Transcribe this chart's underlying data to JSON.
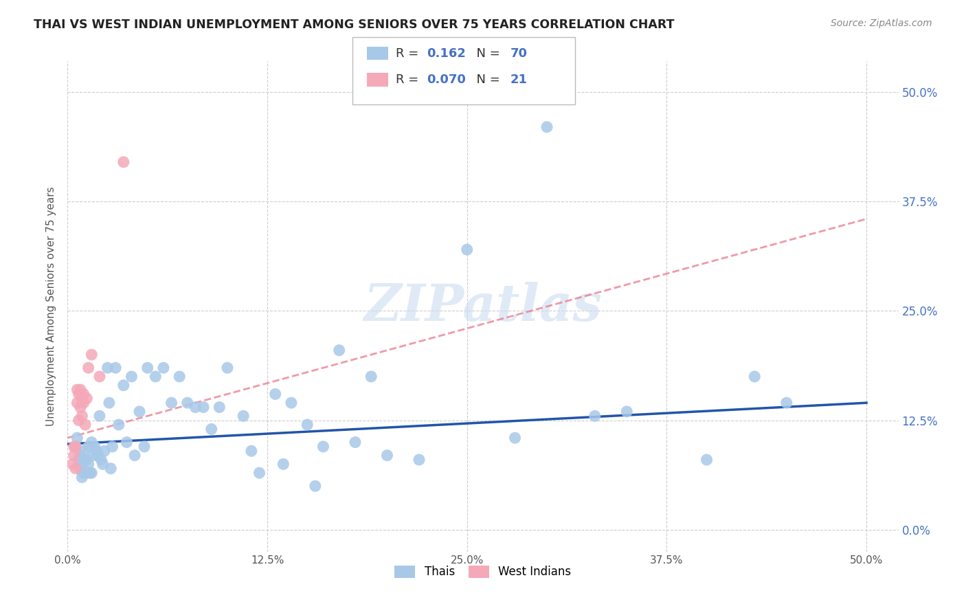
{
  "title": "THAI VS WEST INDIAN UNEMPLOYMENT AMONG SENIORS OVER 75 YEARS CORRELATION CHART",
  "source": "Source: ZipAtlas.com",
  "ylabel": "Unemployment Among Seniors over 75 years",
  "yticks": [
    "0.0%",
    "12.5%",
    "25.0%",
    "37.5%",
    "50.0%"
  ],
  "ytick_vals": [
    0.0,
    0.125,
    0.25,
    0.375,
    0.5
  ],
  "xtick_vals": [
    0.0,
    0.125,
    0.25,
    0.375,
    0.5
  ],
  "xtick_labels": [
    "0.0%",
    "12.5%",
    "25.0%",
    "37.5%",
    "50.0%"
  ],
  "xlim": [
    0.0,
    0.52
  ],
  "ylim": [
    -0.025,
    0.535
  ],
  "legend_thai_R": "0.162",
  "legend_thai_N": "70",
  "legend_wi_R": "0.070",
  "legend_wi_N": "21",
  "thai_color": "#a8c8e8",
  "wi_color": "#f4a8b8",
  "trendline_thai_color": "#2255aa",
  "trendline_wi_color": "#e87080",
  "watermark": "ZIPatlas",
  "thai_trendline_x0": 0.0,
  "thai_trendline_y0": 0.098,
  "thai_trendline_x1": 0.5,
  "thai_trendline_y1": 0.145,
  "wi_trendline_x0": 0.0,
  "wi_trendline_y0": 0.105,
  "wi_trendline_x1": 0.5,
  "wi_trendline_y1": 0.355,
  "thai_x": [
    0.005,
    0.006,
    0.007,
    0.008,
    0.008,
    0.009,
    0.009,
    0.01,
    0.01,
    0.011,
    0.012,
    0.012,
    0.013,
    0.013,
    0.014,
    0.015,
    0.015,
    0.016,
    0.017,
    0.018,
    0.019,
    0.02,
    0.021,
    0.022,
    0.023,
    0.025,
    0.026,
    0.027,
    0.028,
    0.03,
    0.032,
    0.035,
    0.037,
    0.04,
    0.042,
    0.045,
    0.048,
    0.05,
    0.055,
    0.06,
    0.065,
    0.07,
    0.075,
    0.08,
    0.085,
    0.09,
    0.095,
    0.1,
    0.11,
    0.115,
    0.12,
    0.13,
    0.135,
    0.14,
    0.15,
    0.155,
    0.16,
    0.17,
    0.18,
    0.19,
    0.2,
    0.22,
    0.25,
    0.28,
    0.3,
    0.33,
    0.35,
    0.4,
    0.43,
    0.45
  ],
  "thai_y": [
    0.095,
    0.105,
    0.08,
    0.085,
    0.07,
    0.075,
    0.06,
    0.09,
    0.065,
    0.08,
    0.08,
    0.065,
    0.095,
    0.075,
    0.065,
    0.1,
    0.065,
    0.085,
    0.095,
    0.09,
    0.085,
    0.13,
    0.08,
    0.075,
    0.09,
    0.185,
    0.145,
    0.07,
    0.095,
    0.185,
    0.12,
    0.165,
    0.1,
    0.175,
    0.085,
    0.135,
    0.095,
    0.185,
    0.175,
    0.185,
    0.145,
    0.175,
    0.145,
    0.14,
    0.14,
    0.115,
    0.14,
    0.185,
    0.13,
    0.09,
    0.065,
    0.155,
    0.075,
    0.145,
    0.12,
    0.05,
    0.095,
    0.205,
    0.1,
    0.175,
    0.085,
    0.08,
    0.32,
    0.105,
    0.46,
    0.13,
    0.135,
    0.08,
    0.175,
    0.145
  ],
  "wi_x": [
    0.003,
    0.004,
    0.004,
    0.005,
    0.005,
    0.006,
    0.006,
    0.007,
    0.007,
    0.008,
    0.008,
    0.009,
    0.009,
    0.01,
    0.01,
    0.011,
    0.012,
    0.013,
    0.015,
    0.02,
    0.035
  ],
  "wi_y": [
    0.075,
    0.085,
    0.095,
    0.07,
    0.095,
    0.145,
    0.16,
    0.155,
    0.125,
    0.14,
    0.16,
    0.15,
    0.13,
    0.145,
    0.155,
    0.12,
    0.15,
    0.185,
    0.2,
    0.175,
    0.42
  ]
}
